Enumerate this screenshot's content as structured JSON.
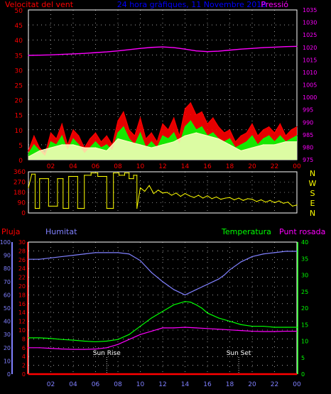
{
  "chart_data": [
    {
      "type": "line",
      "title": "24 hora gràfiques, 11 Novembre 2018",
      "left_label": "Velocitat del vent",
      "right_label": "Pressió",
      "x_ticks": [
        "02",
        "04",
        "06",
        "08",
        "10",
        "12",
        "14",
        "16",
        "18",
        "20",
        "22",
        "00"
      ],
      "left_ticks": [
        0,
        5,
        10,
        15,
        20,
        25,
        30,
        35,
        40,
        45,
        50
      ],
      "right_ticks": [
        975,
        980,
        985,
        990,
        995,
        1000,
        1005,
        1010,
        1015,
        1020,
        1025,
        1030,
        1035
      ],
      "ylim_left": [
        0,
        50
      ],
      "ylim_right": [
        975,
        1035
      ],
      "xlim": [
        0,
        24
      ],
      "grid": true,
      "colors": {
        "gust": "#ff0000",
        "speed": "#00ff00",
        "average": "#ffffc0",
        "pressure": "#ff00ff",
        "title": "#0000ff",
        "ticks": "#ff0000"
      },
      "series": [
        {
          "role": "pressure",
          "x": [
            0,
            1,
            2,
            3,
            4,
            5,
            6,
            7,
            8,
            9,
            10,
            11,
            12,
            13,
            14,
            15,
            16,
            17,
            18,
            19,
            20,
            21,
            22,
            23,
            24
          ],
          "values": [
            1016.8,
            1016.9,
            1017.0,
            1017.2,
            1017.4,
            1017.6,
            1017.9,
            1018.2,
            1018.6,
            1019.1,
            1019.6,
            1020.0,
            1020.2,
            1019.9,
            1019.3,
            1018.6,
            1018.3,
            1018.5,
            1018.9,
            1019.3,
            1019.6,
            1019.9,
            1020.1,
            1020.3,
            1020.4
          ]
        },
        {
          "role": "gust",
          "x": [
            0,
            0.5,
            1,
            1.5,
            2,
            2.5,
            3,
            3.5,
            4,
            4.5,
            5,
            5.5,
            6,
            6.5,
            7,
            7.5,
            8,
            8.5,
            9,
            9.5,
            10,
            10.5,
            11,
            11.5,
            12,
            12.5,
            13,
            13.5,
            14,
            14.5,
            15,
            15.5,
            16,
            16.5,
            17,
            17.5,
            18,
            18.5,
            19,
            19.5,
            20,
            20.5,
            21,
            21.5,
            22,
            22.5,
            23,
            23.5,
            24
          ],
          "values": [
            3,
            8,
            4,
            2,
            9,
            7,
            12,
            5,
            10,
            8,
            4,
            7,
            9,
            6,
            8,
            5,
            13,
            16,
            10,
            8,
            14,
            7,
            9,
            6,
            12,
            10,
            14,
            8,
            17,
            19,
            15,
            16,
            12,
            14,
            11,
            9,
            10,
            6,
            8,
            9,
            12,
            8,
            10,
            11,
            9,
            12,
            8,
            10,
            11
          ]
        },
        {
          "role": "speed",
          "x": [
            0,
            0.5,
            1,
            1.5,
            2,
            2.5,
            3,
            3.5,
            4,
            4.5,
            5,
            5.5,
            6,
            6.5,
            7,
            7.5,
            8,
            8.5,
            9,
            9.5,
            10,
            10.5,
            11,
            11.5,
            12,
            12.5,
            13,
            13.5,
            14,
            14.5,
            15,
            15.5,
            16,
            16.5,
            17,
            17.5,
            18,
            18.5,
            19,
            19.5,
            20,
            20.5,
            21,
            21.5,
            22,
            22.5,
            23,
            23.5,
            24
          ],
          "values": [
            2,
            5,
            3,
            1,
            6,
            5,
            8,
            3,
            7,
            5,
            2,
            4,
            6,
            4,
            5,
            3,
            9,
            11,
            7,
            5,
            9,
            4,
            6,
            4,
            8,
            7,
            9,
            5,
            11,
            13,
            10,
            11,
            8,
            9,
            7,
            6,
            7,
            4,
            5,
            6,
            8,
            5,
            7,
            8,
            6,
            8,
            6,
            7,
            8
          ]
        },
        {
          "role": "average",
          "x": [
            0,
            1,
            2,
            3,
            4,
            5,
            6,
            7,
            8,
            9,
            10,
            11,
            12,
            13,
            14,
            15,
            16,
            17,
            18,
            19,
            20,
            21,
            22,
            23,
            24
          ],
          "values": [
            1,
            3,
            4,
            5,
            5,
            4,
            4,
            3,
            7,
            6,
            5,
            4,
            5,
            6,
            8,
            9,
            8,
            7,
            5,
            3,
            4,
            5,
            5,
            6,
            6
          ]
        }
      ]
    },
    {
      "type": "line",
      "right_compass": [
        "N",
        "W",
        "S",
        "E",
        "N"
      ],
      "left_ticks": [
        0,
        90,
        180,
        270,
        360
      ],
      "ylim": [
        0,
        360
      ],
      "xlim": [
        0,
        24
      ],
      "grid": true,
      "colors": {
        "direction": "#ffff00",
        "ticks": "#ff0000"
      },
      "series": [
        {
          "role": "direction",
          "x": [
            0,
            0.3,
            0.6,
            0.6,
            1,
            1,
            1.8,
            1.8,
            2.6,
            2.6,
            3.1,
            3.1,
            3.6,
            3.6,
            4.4,
            4.4,
            5.0,
            5.0,
            5.6,
            5.6,
            6.2,
            6.2,
            7.0,
            7.0,
            7.6,
            7.6,
            8.1,
            8.1,
            8.6,
            8.6,
            9.0,
            9.0,
            9.4,
            9.4,
            9.7,
            9.7,
            10.0,
            10.4,
            10.8,
            11.2,
            11.6,
            12.0,
            12.4,
            12.8,
            13.2,
            13.6,
            14.0,
            14.4,
            14.8,
            15.2,
            15.6,
            16.0,
            16.4,
            16.8,
            17.2,
            17.6,
            18.0,
            18.4,
            18.8,
            19.2,
            19.6,
            20.0,
            20.4,
            20.8,
            21.2,
            21.6,
            22.0,
            22.4,
            22.8,
            23.2,
            23.6,
            24
          ],
          "values": [
            220,
            340,
            340,
            40,
            40,
            300,
            300,
            60,
            60,
            300,
            300,
            40,
            40,
            320,
            320,
            40,
            40,
            330,
            330,
            350,
            350,
            320,
            320,
            40,
            40,
            350,
            350,
            330,
            330,
            350,
            350,
            300,
            300,
            330,
            330,
            40,
            220,
            190,
            240,
            170,
            200,
            175,
            180,
            155,
            175,
            145,
            170,
            150,
            135,
            155,
            130,
            150,
            125,
            140,
            120,
            130,
            135,
            115,
            130,
            110,
            125,
            120,
            100,
            115,
            95,
            110,
            90,
            105,
            85,
            95,
            60,
            70
          ]
        }
      ]
    },
    {
      "type": "line",
      "left_label_1": "Pluja",
      "left_label_2": "Humitat",
      "right_label_1": "Temperatura",
      "right_label_2": "Punt rosada",
      "left_ticks_humidity": [
        0,
        10,
        20,
        30,
        40,
        50,
        60,
        70,
        80,
        90,
        100
      ],
      "left_ticks_rain": [
        0,
        2,
        4,
        6,
        8,
        10,
        12,
        14,
        16,
        18,
        20,
        22,
        24,
        26,
        28,
        30
      ],
      "right_ticks": [
        0,
        5,
        10,
        15,
        20,
        25,
        30,
        35,
        40
      ],
      "ylim_humidity": [
        0,
        100
      ],
      "ylim_temp": [
        0,
        40
      ],
      "xlim": [
        0,
        24
      ],
      "grid": true,
      "annotations": [
        {
          "label": "Sun Rise",
          "x": 7.0
        },
        {
          "label": "Sun Set",
          "x": 18.8
        }
      ],
      "colors": {
        "humidity": "#8080ff",
        "temperature": "#00ff00",
        "dewpoint": "#ff00ff",
        "rain": "#ff0000",
        "rain_ticks": "#ff0000",
        "humidity_ticks": "#8080ff",
        "temp_ticks": "#00ff00",
        "annotation": "#ffffff"
      },
      "series": [
        {
          "role": "humidity",
          "x": [
            0,
            1,
            2,
            3,
            4,
            5,
            6,
            7,
            8,
            9,
            10,
            11,
            12,
            12.5,
            13,
            13.5,
            14,
            14.5,
            15,
            15.5,
            16,
            16.5,
            17,
            17.5,
            18,
            19,
            20,
            21,
            22,
            23,
            24
          ],
          "values": [
            87,
            87,
            88,
            89,
            90,
            91,
            92,
            92,
            92,
            91,
            86,
            77,
            70,
            67,
            64,
            62,
            60,
            62,
            64,
            66,
            68,
            70,
            72,
            75,
            79,
            85,
            89,
            91,
            92,
            93,
            93
          ]
        },
        {
          "role": "temperature",
          "x": [
            0,
            1,
            2,
            3,
            4,
            5,
            6,
            7,
            8,
            9,
            10,
            11,
            12,
            12.5,
            13,
            13.5,
            14,
            14.5,
            15,
            15.5,
            16,
            17,
            18,
            19,
            20,
            21,
            22,
            23,
            24
          ],
          "values": [
            11,
            11,
            10.8,
            10.5,
            10.3,
            10.0,
            9.8,
            10.0,
            10.5,
            12,
            14.5,
            17,
            19,
            20,
            21,
            21.5,
            22,
            21.8,
            21,
            20,
            18.5,
            17,
            16,
            15,
            14.5,
            14.5,
            14.2,
            14.2,
            14.2
          ]
        },
        {
          "role": "dewpoint",
          "x": [
            0,
            1,
            2,
            3,
            4,
            5,
            6,
            7,
            8,
            9,
            10,
            11,
            12,
            13,
            14,
            15,
            16,
            17,
            18,
            19,
            20,
            21,
            22,
            23,
            24
          ],
          "values": [
            8,
            8,
            7.8,
            7.6,
            7.5,
            7.5,
            7.6,
            8.0,
            9,
            10.5,
            12,
            13,
            14,
            14,
            14.2,
            14,
            13.8,
            13.6,
            13.4,
            13.2,
            13.0,
            12.9,
            12.9,
            13.0,
            13.0
          ]
        },
        {
          "role": "rain",
          "x": [
            0,
            24
          ],
          "values": [
            0,
            0
          ]
        }
      ]
    }
  ]
}
